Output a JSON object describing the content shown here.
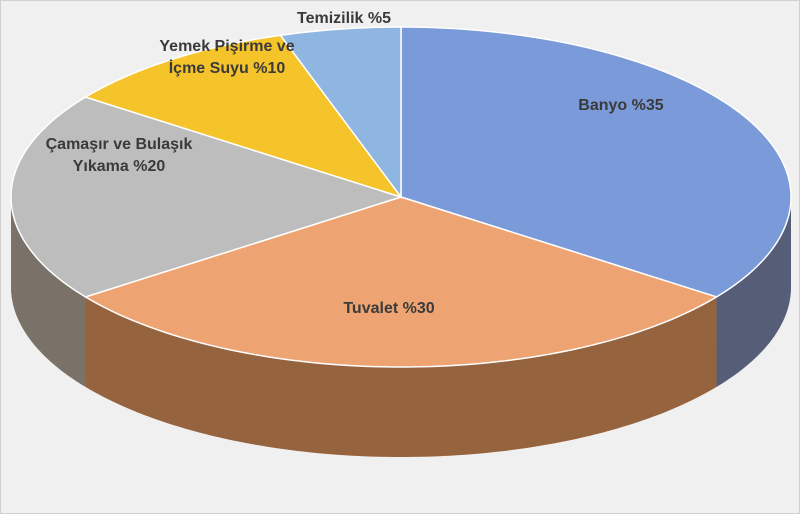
{
  "chart_data": {
    "type": "pie",
    "categories": [
      "Banyo",
      "Tuvalet",
      "Çamaşır ve Bulaşık Yıkama",
      "Yemek Pişirme ve İçme Suyu",
      "Temizilik"
    ],
    "values": [
      35,
      30,
      20,
      10,
      5
    ],
    "value_labels": [
      "%35",
      "%30",
      "%20",
      "%10",
      "%5"
    ],
    "colors": [
      "#7a9ad9",
      "#eea472",
      "#bdbdbd",
      "#f5c42a",
      "#8fb5e1"
    ]
  }
}
